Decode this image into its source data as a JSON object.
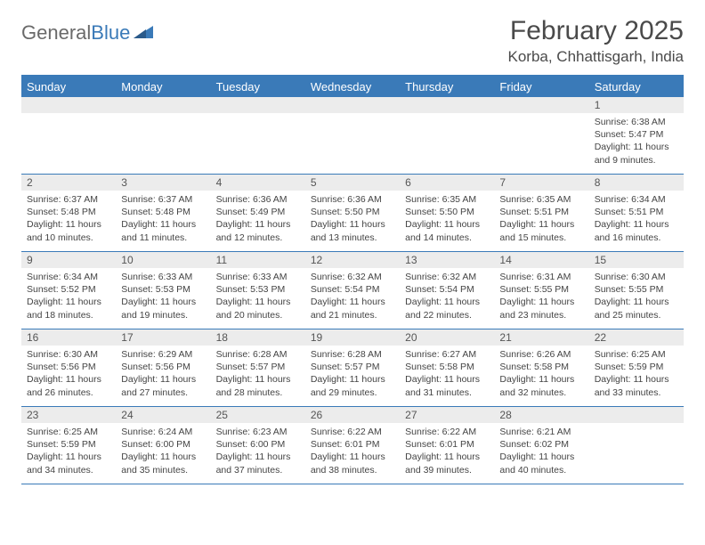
{
  "brand": {
    "part1": "General",
    "part2": "Blue"
  },
  "title": "February 2025",
  "location": "Korba, Chhattisgarh, India",
  "colors": {
    "header_bg": "#3a7ab8",
    "header_text": "#ffffff",
    "datebar_bg": "#ececec",
    "border": "#3a7ab8",
    "body_text": "#444444",
    "title_text": "#4a4a4a"
  },
  "day_headers": [
    "Sunday",
    "Monday",
    "Tuesday",
    "Wednesday",
    "Thursday",
    "Friday",
    "Saturday"
  ],
  "weeks": [
    [
      {
        "date": "",
        "sunrise": "",
        "sunset": "",
        "daylight": ""
      },
      {
        "date": "",
        "sunrise": "",
        "sunset": "",
        "daylight": ""
      },
      {
        "date": "",
        "sunrise": "",
        "sunset": "",
        "daylight": ""
      },
      {
        "date": "",
        "sunrise": "",
        "sunset": "",
        "daylight": ""
      },
      {
        "date": "",
        "sunrise": "",
        "sunset": "",
        "daylight": ""
      },
      {
        "date": "",
        "sunrise": "",
        "sunset": "",
        "daylight": ""
      },
      {
        "date": "1",
        "sunrise": "Sunrise: 6:38 AM",
        "sunset": "Sunset: 5:47 PM",
        "daylight": "Daylight: 11 hours and 9 minutes."
      }
    ],
    [
      {
        "date": "2",
        "sunrise": "Sunrise: 6:37 AM",
        "sunset": "Sunset: 5:48 PM",
        "daylight": "Daylight: 11 hours and 10 minutes."
      },
      {
        "date": "3",
        "sunrise": "Sunrise: 6:37 AM",
        "sunset": "Sunset: 5:48 PM",
        "daylight": "Daylight: 11 hours and 11 minutes."
      },
      {
        "date": "4",
        "sunrise": "Sunrise: 6:36 AM",
        "sunset": "Sunset: 5:49 PM",
        "daylight": "Daylight: 11 hours and 12 minutes."
      },
      {
        "date": "5",
        "sunrise": "Sunrise: 6:36 AM",
        "sunset": "Sunset: 5:50 PM",
        "daylight": "Daylight: 11 hours and 13 minutes."
      },
      {
        "date": "6",
        "sunrise": "Sunrise: 6:35 AM",
        "sunset": "Sunset: 5:50 PM",
        "daylight": "Daylight: 11 hours and 14 minutes."
      },
      {
        "date": "7",
        "sunrise": "Sunrise: 6:35 AM",
        "sunset": "Sunset: 5:51 PM",
        "daylight": "Daylight: 11 hours and 15 minutes."
      },
      {
        "date": "8",
        "sunrise": "Sunrise: 6:34 AM",
        "sunset": "Sunset: 5:51 PM",
        "daylight": "Daylight: 11 hours and 16 minutes."
      }
    ],
    [
      {
        "date": "9",
        "sunrise": "Sunrise: 6:34 AM",
        "sunset": "Sunset: 5:52 PM",
        "daylight": "Daylight: 11 hours and 18 minutes."
      },
      {
        "date": "10",
        "sunrise": "Sunrise: 6:33 AM",
        "sunset": "Sunset: 5:53 PM",
        "daylight": "Daylight: 11 hours and 19 minutes."
      },
      {
        "date": "11",
        "sunrise": "Sunrise: 6:33 AM",
        "sunset": "Sunset: 5:53 PM",
        "daylight": "Daylight: 11 hours and 20 minutes."
      },
      {
        "date": "12",
        "sunrise": "Sunrise: 6:32 AM",
        "sunset": "Sunset: 5:54 PM",
        "daylight": "Daylight: 11 hours and 21 minutes."
      },
      {
        "date": "13",
        "sunrise": "Sunrise: 6:32 AM",
        "sunset": "Sunset: 5:54 PM",
        "daylight": "Daylight: 11 hours and 22 minutes."
      },
      {
        "date": "14",
        "sunrise": "Sunrise: 6:31 AM",
        "sunset": "Sunset: 5:55 PM",
        "daylight": "Daylight: 11 hours and 23 minutes."
      },
      {
        "date": "15",
        "sunrise": "Sunrise: 6:30 AM",
        "sunset": "Sunset: 5:55 PM",
        "daylight": "Daylight: 11 hours and 25 minutes."
      }
    ],
    [
      {
        "date": "16",
        "sunrise": "Sunrise: 6:30 AM",
        "sunset": "Sunset: 5:56 PM",
        "daylight": "Daylight: 11 hours and 26 minutes."
      },
      {
        "date": "17",
        "sunrise": "Sunrise: 6:29 AM",
        "sunset": "Sunset: 5:56 PM",
        "daylight": "Daylight: 11 hours and 27 minutes."
      },
      {
        "date": "18",
        "sunrise": "Sunrise: 6:28 AM",
        "sunset": "Sunset: 5:57 PM",
        "daylight": "Daylight: 11 hours and 28 minutes."
      },
      {
        "date": "19",
        "sunrise": "Sunrise: 6:28 AM",
        "sunset": "Sunset: 5:57 PM",
        "daylight": "Daylight: 11 hours and 29 minutes."
      },
      {
        "date": "20",
        "sunrise": "Sunrise: 6:27 AM",
        "sunset": "Sunset: 5:58 PM",
        "daylight": "Daylight: 11 hours and 31 minutes."
      },
      {
        "date": "21",
        "sunrise": "Sunrise: 6:26 AM",
        "sunset": "Sunset: 5:58 PM",
        "daylight": "Daylight: 11 hours and 32 minutes."
      },
      {
        "date": "22",
        "sunrise": "Sunrise: 6:25 AM",
        "sunset": "Sunset: 5:59 PM",
        "daylight": "Daylight: 11 hours and 33 minutes."
      }
    ],
    [
      {
        "date": "23",
        "sunrise": "Sunrise: 6:25 AM",
        "sunset": "Sunset: 5:59 PM",
        "daylight": "Daylight: 11 hours and 34 minutes."
      },
      {
        "date": "24",
        "sunrise": "Sunrise: 6:24 AM",
        "sunset": "Sunset: 6:00 PM",
        "daylight": "Daylight: 11 hours and 35 minutes."
      },
      {
        "date": "25",
        "sunrise": "Sunrise: 6:23 AM",
        "sunset": "Sunset: 6:00 PM",
        "daylight": "Daylight: 11 hours and 37 minutes."
      },
      {
        "date": "26",
        "sunrise": "Sunrise: 6:22 AM",
        "sunset": "Sunset: 6:01 PM",
        "daylight": "Daylight: 11 hours and 38 minutes."
      },
      {
        "date": "27",
        "sunrise": "Sunrise: 6:22 AM",
        "sunset": "Sunset: 6:01 PM",
        "daylight": "Daylight: 11 hours and 39 minutes."
      },
      {
        "date": "28",
        "sunrise": "Sunrise: 6:21 AM",
        "sunset": "Sunset: 6:02 PM",
        "daylight": "Daylight: 11 hours and 40 minutes."
      },
      {
        "date": "",
        "sunrise": "",
        "sunset": "",
        "daylight": ""
      }
    ]
  ]
}
